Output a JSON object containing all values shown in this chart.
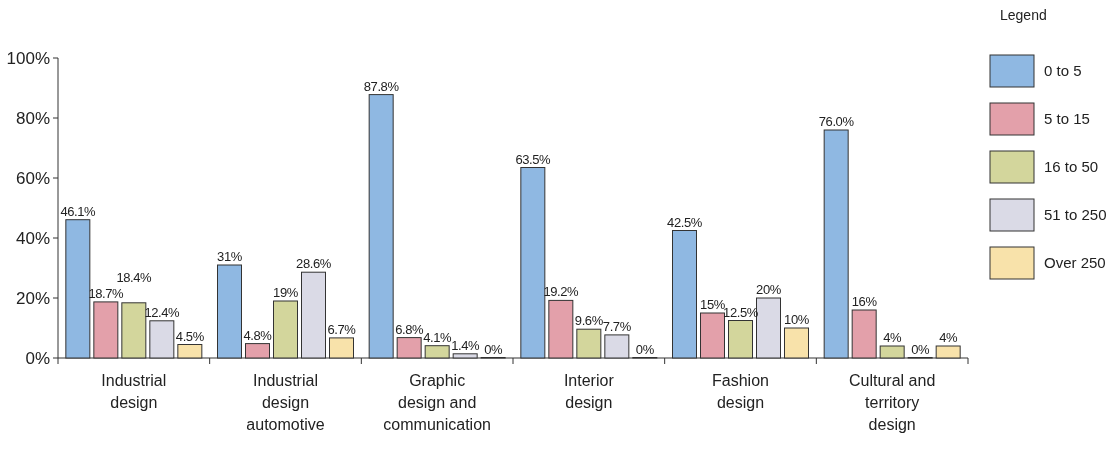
{
  "chart_data": {
    "type": "bar",
    "categories": [
      "Industrial design",
      "Industrial design automotive",
      "Graphic design and communication",
      "Interior design",
      "Fashion design",
      "Cultural and territory design"
    ],
    "series": [
      {
        "name": "0 to 5",
        "color": "#8fb8e2",
        "values": [
          46.1,
          31,
          87.8,
          63.5,
          42.5,
          76.0
        ],
        "value_labels": [
          "46.1%",
          "31%",
          "87.8%",
          "63.5%",
          "42.5%",
          "76.0%"
        ]
      },
      {
        "name": "5 to 15",
        "color": "#e3a0aa",
        "values": [
          18.7,
          4.8,
          6.8,
          19.2,
          15,
          16
        ],
        "value_labels": [
          "18.7%",
          "4.8%",
          "6.8%",
          "19.2%",
          "15%",
          "16%"
        ]
      },
      {
        "name": "16 to 50",
        "color": "#d3d69c",
        "values": [
          18.4,
          19,
          4.1,
          9.6,
          12.5,
          4
        ],
        "value_labels": [
          "18.4%",
          "19%",
          "4.1%",
          "9.6%",
          "12.5%",
          "4%"
        ]
      },
      {
        "name": "51 to 250",
        "color": "#dadae6",
        "values": [
          12.4,
          28.6,
          1.4,
          7.7,
          20,
          0
        ],
        "value_labels": [
          "12.4%",
          "28.6%",
          "1.4%",
          "7.7%",
          "20%",
          "0%"
        ]
      },
      {
        "name": "Over 250",
        "color": "#f8e2aa",
        "values": [
          4.5,
          6.7,
          0,
          0,
          10,
          4
        ],
        "value_labels": [
          "4.5%",
          "6.7%",
          "0%",
          "0%",
          "10%",
          "4%"
        ]
      }
    ],
    "ylim": [
      0,
      100
    ],
    "yticks": [
      {
        "value": 0,
        "label": "0%"
      },
      {
        "value": 20,
        "label": "20%"
      },
      {
        "value": 40,
        "label": "40%"
      },
      {
        "value": 60,
        "label": "60%"
      },
      {
        "value": 80,
        "label": "80%"
      },
      {
        "value": 100,
        "label": "100%"
      }
    ],
    "legend": "right",
    "legend_title": "Legend",
    "grid": false
  }
}
